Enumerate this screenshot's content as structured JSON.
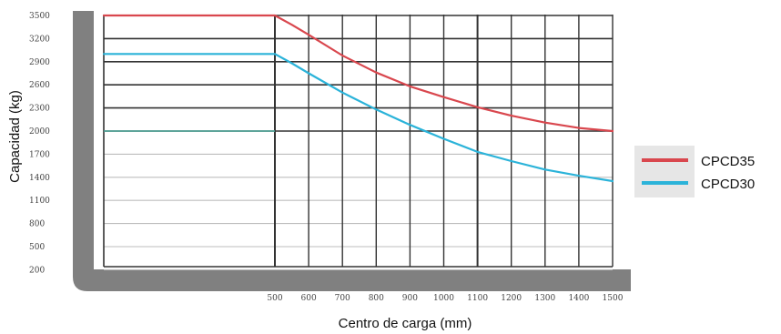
{
  "chart_data": {
    "type": "line",
    "title": "",
    "xlabel": "Centro de carga (mm)",
    "ylabel": "Capacidad (kg)",
    "x_ticks": [
      "500",
      "600",
      "700",
      "800",
      "900",
      "1000",
      "1100",
      "1200",
      "1300",
      "1400",
      "1500"
    ],
    "y_ticks": [
      "3500",
      "3200",
      "2900",
      "2600",
      "2300",
      "2000",
      "1700",
      "1400",
      "1100",
      "800",
      "500",
      "200"
    ],
    "xlim": [
      0,
      1500
    ],
    "ylim": [
      200,
      3500
    ],
    "grid": true,
    "legend_position": "right",
    "series": [
      {
        "name": "CPCD35",
        "color": "#d9474e",
        "points": [
          [
            0,
            3500
          ],
          [
            500,
            3500
          ],
          [
            550,
            3380
          ],
          [
            600,
            3250
          ],
          [
            700,
            2980
          ],
          [
            800,
            2760
          ],
          [
            900,
            2580
          ],
          [
            1000,
            2440
          ],
          [
            1100,
            2310
          ],
          [
            1200,
            2200
          ],
          [
            1300,
            2110
          ],
          [
            1400,
            2040
          ],
          [
            1500,
            2000
          ]
        ]
      },
      {
        "name": "CPCD30",
        "color": "#2bb3d9",
        "points": [
          [
            0,
            3000
          ],
          [
            500,
            3000
          ],
          [
            550,
            2880
          ],
          [
            600,
            2750
          ],
          [
            700,
            2500
          ],
          [
            800,
            2280
          ],
          [
            900,
            2080
          ],
          [
            1000,
            1900
          ],
          [
            1100,
            1730
          ],
          [
            1200,
            1610
          ],
          [
            1300,
            1500
          ],
          [
            1400,
            1420
          ],
          [
            1500,
            1350
          ]
        ]
      }
    ],
    "reference_line": {
      "y": 2000,
      "x_range": [
        0,
        500
      ],
      "color": "#4aa89a"
    }
  }
}
